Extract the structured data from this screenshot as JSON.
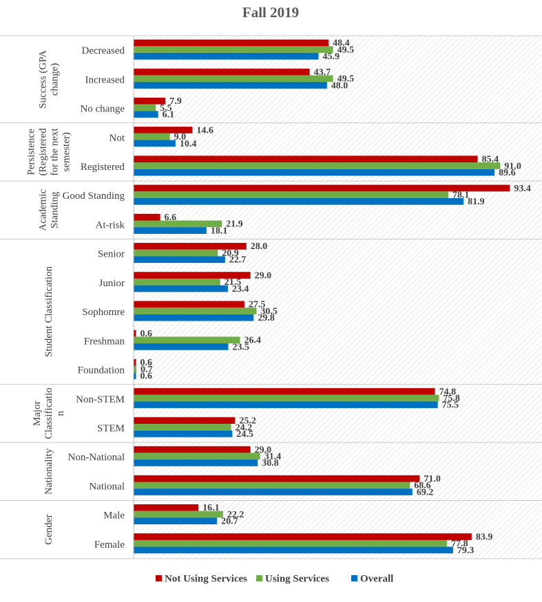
{
  "chart_data": {
    "type": "bar",
    "orientation": "horizontal",
    "title": "Fall 2019",
    "xlim": [
      0,
      100
    ],
    "grid": false,
    "legend_position": "bottom",
    "series_names": [
      "Not Using Services",
      "Using Services",
      "Overall"
    ],
    "series_colors": [
      "#C00000",
      "#70AD47",
      "#0070C0"
    ],
    "groups": [
      {
        "label": "Success (GPA change)",
        "label_lines": [
          "Success (GPA",
          "change)"
        ],
        "categories": [
          {
            "label": "Decreased",
            "values": [
              48.4,
              49.5,
              45.9
            ]
          },
          {
            "label": "Increased",
            "values": [
              43.7,
              49.5,
              48.0
            ]
          },
          {
            "label": "No change",
            "values": [
              7.9,
              5.5,
              6.1
            ]
          }
        ]
      },
      {
        "label": "Persistence (Registered for the next semester)",
        "label_lines": [
          "Persistence",
          "(Registered",
          "for the next",
          "semester)"
        ],
        "categories": [
          {
            "label": "Not",
            "values": [
              14.6,
              9.0,
              10.4
            ]
          },
          {
            "label": "Registered",
            "values": [
              85.4,
              91.0,
              89.6
            ]
          }
        ]
      },
      {
        "label": "Academic Standing",
        "label_lines": [
          "Academic",
          "Standing"
        ],
        "categories": [
          {
            "label": "Good Standing",
            "values": [
              93.4,
              78.1,
              81.9
            ]
          },
          {
            "label": "At-risk",
            "values": [
              6.6,
              21.9,
              18.1
            ]
          }
        ]
      },
      {
        "label": "Student Classification",
        "label_lines": [
          "Student Classification"
        ],
        "categories": [
          {
            "label": "Senior",
            "values": [
              28.0,
              20.9,
              22.7
            ]
          },
          {
            "label": "Junior",
            "values": [
              29.0,
              21.5,
              23.4
            ]
          },
          {
            "label": "Sophomre",
            "values": [
              27.5,
              30.5,
              29.8
            ]
          },
          {
            "label": "Freshman",
            "values": [
              0.6,
              26.4,
              23.5
            ]
          },
          {
            "label": "Foundation",
            "values": [
              0.6,
              0.7,
              0.6
            ]
          }
        ]
      },
      {
        "label": "Major Classification",
        "label_lines": [
          "Major",
          "Classificatio",
          "n"
        ],
        "categories": [
          {
            "label": "Non-STEM",
            "values": [
              74.8,
              75.8,
              75.5
            ]
          },
          {
            "label": "STEM",
            "values": [
              25.2,
              24.2,
              24.5
            ]
          }
        ]
      },
      {
        "label": "Nationality",
        "label_lines": [
          "Nationality"
        ],
        "categories": [
          {
            "label": "Non-National",
            "values": [
              29.0,
              31.4,
              30.8
            ]
          },
          {
            "label": "National",
            "values": [
              71.0,
              68.6,
              69.2
            ]
          }
        ]
      },
      {
        "label": "Gender",
        "label_lines": [
          "Gender"
        ],
        "categories": [
          {
            "label": "Male",
            "values": [
              16.1,
              22.2,
              20.7
            ]
          },
          {
            "label": "Female",
            "values": [
              83.9,
              77.8,
              79.3
            ]
          }
        ]
      }
    ]
  }
}
